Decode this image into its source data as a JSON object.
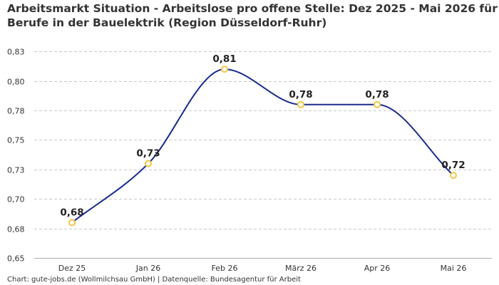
{
  "chart_data": {
    "type": "line",
    "title": "Arbeitsmarkt Situation - Arbeitslose pro offene Stelle: Dez 2025 - Mai 2026 für",
    "subtitle": "Berufe in der Bauelektrik (Region Düsseldorf-Ruhr)",
    "xlabel": "",
    "ylabel": "",
    "categories": [
      "Dez 25",
      "Jan 26",
      "Feb 26",
      "März 26",
      "Apr 26",
      "Mai 26"
    ],
    "series": [
      {
        "values": [
          0.68,
          0.73,
          0.81,
          0.78,
          0.78,
          0.72
        ],
        "data_labels": [
          "0,68",
          "0,73",
          "0,81",
          "0,78",
          "0,78",
          "0,72"
        ]
      }
    ],
    "ylim": [
      0.65,
      0.83
    ],
    "yticks": [
      0.65,
      0.675,
      0.7,
      0.725,
      0.75,
      0.775,
      0.8,
      0.825
    ],
    "ytick_labels": [
      "0,65",
      "0,68",
      "0,70",
      "0,73",
      "0,75",
      "0,78",
      "0,80",
      "0,83"
    ],
    "grid": true,
    "legend": "none",
    "colors": {
      "line": "#1a2b8c",
      "marker_stroke": "#f2c744",
      "marker_fill": "#ffffff"
    }
  },
  "footer": {
    "source": "Chart: gute-jobs.de (Wollmilchsau GmbH) | Datenquelle: Bundesagentur für Arbeit"
  }
}
